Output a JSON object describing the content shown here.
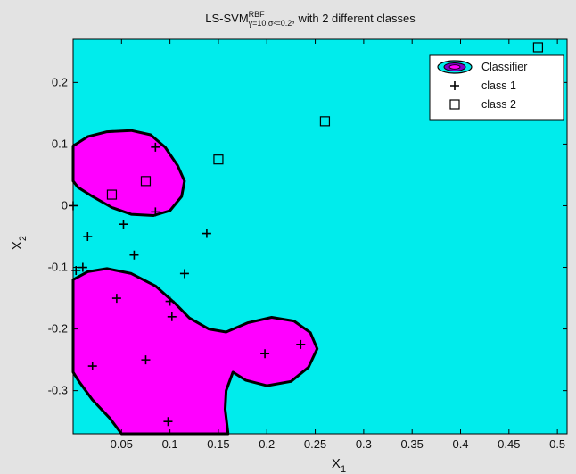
{
  "chart_data": {
    "type": "scatter",
    "title": {
      "prefix": "LS-SVM",
      "superscript": "RBF",
      "subscript": "γ=10,σ²=0.2",
      "suffix": ", with 2 different classes"
    },
    "xlabel": {
      "base": "X",
      "sub": "1"
    },
    "ylabel": {
      "base": "X",
      "sub": "2"
    },
    "xlim": [
      0,
      0.51
    ],
    "ylim": [
      -0.37,
      0.27
    ],
    "xticks": [
      0.05,
      0.1,
      0.15,
      0.2,
      0.25,
      0.3,
      0.35,
      0.4,
      0.45,
      0.5
    ],
    "xtick_labels": [
      "0.05",
      "0.1",
      "0.15",
      "0.2",
      "0.25",
      "0.3",
      "0.35",
      "0.4",
      "0.45",
      "0.5"
    ],
    "yticks": [
      0.2,
      0.1,
      0,
      -0.1,
      -0.2,
      -0.3
    ],
    "ytick_labels": [
      "0.2",
      "0.1",
      "0",
      "-0.1",
      "-0.2",
      "-0.3"
    ],
    "grid": false,
    "legend_position": "top-right",
    "colors": {
      "background_region": "#00ecec",
      "classifier_region": "#ff00ff",
      "boundary": "#000000",
      "figure_bg": "#e3e3e3"
    },
    "legend": [
      {
        "label": "Classifier",
        "marker": "contour"
      },
      {
        "label": "class 1",
        "marker": "plus"
      },
      {
        "label": "class 2",
        "marker": "square"
      }
    ],
    "classifier_regions": [
      [
        [
          0.0,
          0.097
        ],
        [
          0.015,
          0.112
        ],
        [
          0.035,
          0.12
        ],
        [
          0.06,
          0.122
        ],
        [
          0.08,
          0.115
        ],
        [
          0.095,
          0.095
        ],
        [
          0.108,
          0.065
        ],
        [
          0.115,
          0.04
        ],
        [
          0.112,
          0.015
        ],
        [
          0.1,
          -0.008
        ],
        [
          0.083,
          -0.016
        ],
        [
          0.06,
          -0.014
        ],
        [
          0.04,
          -0.003
        ],
        [
          0.02,
          0.015
        ],
        [
          0.005,
          0.03
        ],
        [
          0.0,
          0.04
        ]
      ],
      [
        [
          0.0,
          -0.12
        ],
        [
          0.015,
          -0.107
        ],
        [
          0.035,
          -0.102
        ],
        [
          0.06,
          -0.11
        ],
        [
          0.085,
          -0.13
        ],
        [
          0.105,
          -0.158
        ],
        [
          0.12,
          -0.182
        ],
        [
          0.14,
          -0.2
        ],
        [
          0.158,
          -0.205
        ],
        [
          0.18,
          -0.19
        ],
        [
          0.205,
          -0.181
        ],
        [
          0.228,
          -0.187
        ],
        [
          0.245,
          -0.206
        ],
        [
          0.252,
          -0.232
        ],
        [
          0.243,
          -0.262
        ],
        [
          0.225,
          -0.285
        ],
        [
          0.2,
          -0.292
        ],
        [
          0.178,
          -0.283
        ],
        [
          0.165,
          -0.27
        ],
        [
          0.158,
          -0.3
        ],
        [
          0.157,
          -0.33
        ],
        [
          0.16,
          -0.37
        ],
        [
          0.05,
          -0.37
        ],
        [
          0.038,
          -0.345
        ],
        [
          0.02,
          -0.315
        ],
        [
          0.006,
          -0.285
        ],
        [
          0.0,
          -0.27
        ]
      ]
    ],
    "series": [
      {
        "name": "class 1",
        "marker": "plus",
        "x": [
          0.085,
          0.0,
          0.015,
          0.052,
          0.085,
          0.01,
          0.063,
          0.138,
          0.003,
          0.045,
          0.115,
          0.1,
          0.075,
          0.102,
          0.198,
          0.235,
          0.02,
          0.098
        ],
        "y": [
          0.095,
          0.0,
          -0.05,
          -0.03,
          -0.01,
          -0.1,
          -0.08,
          -0.045,
          -0.105,
          -0.15,
          -0.11,
          -0.155,
          -0.25,
          -0.18,
          -0.24,
          -0.225,
          -0.26,
          -0.35
        ]
      },
      {
        "name": "class 2",
        "marker": "square",
        "x": [
          0.04,
          0.075,
          0.15,
          0.26,
          0.48
        ],
        "y": [
          0.018,
          0.04,
          0.075,
          0.137,
          0.257
        ]
      }
    ]
  }
}
